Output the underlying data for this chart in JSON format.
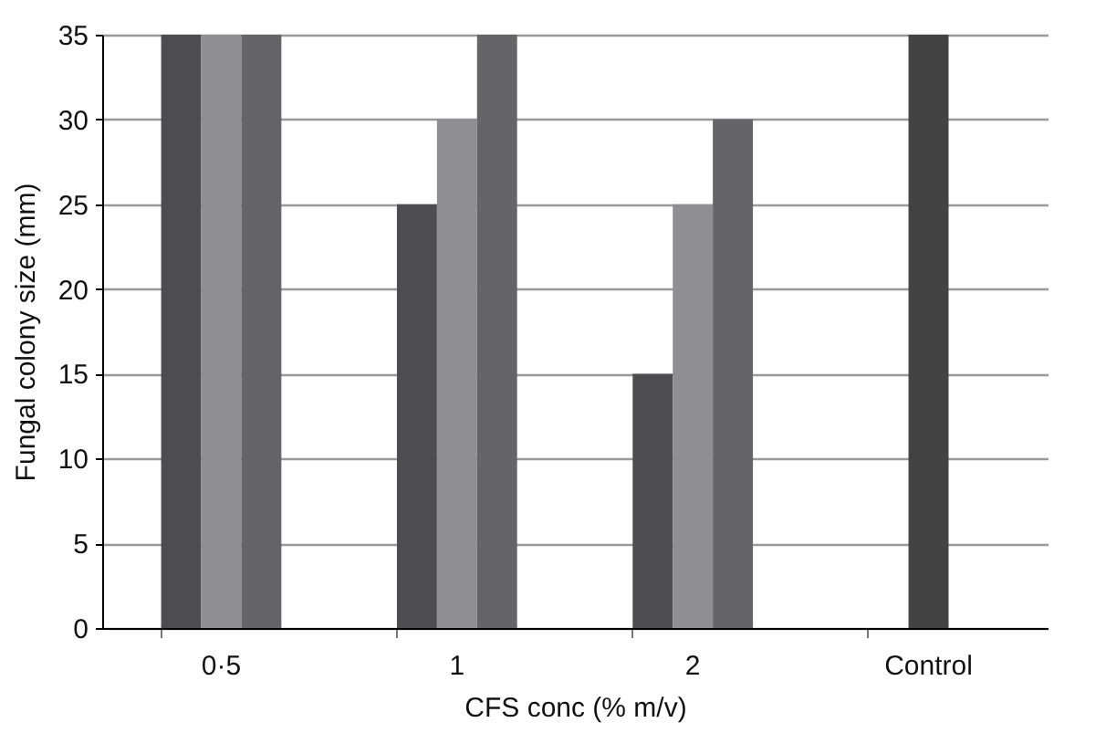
{
  "chart_data": {
    "type": "bar",
    "xlabel": "CFS conc (% m/v)",
    "ylabel": "Fungal colony size (mm)",
    "categories": [
      "0·5",
      "1",
      "2",
      "Control"
    ],
    "series": [
      {
        "color": "#4d4d4f",
        "values": [
          35,
          25,
          15,
          null
        ]
      },
      {
        "colors": [
          "#8f8f91",
          "#8f8f91",
          "#8f8f91",
          "#434343"
        ],
        "values": [
          35,
          30,
          25,
          35
        ]
      },
      {
        "color": "#656567",
        "values": [
          35,
          35,
          30,
          null
        ]
      }
    ],
    "ylim": [
      0,
      35
    ],
    "yticks": [
      0,
      5,
      10,
      15,
      20,
      25,
      30,
      35
    ],
    "grid": "y"
  }
}
